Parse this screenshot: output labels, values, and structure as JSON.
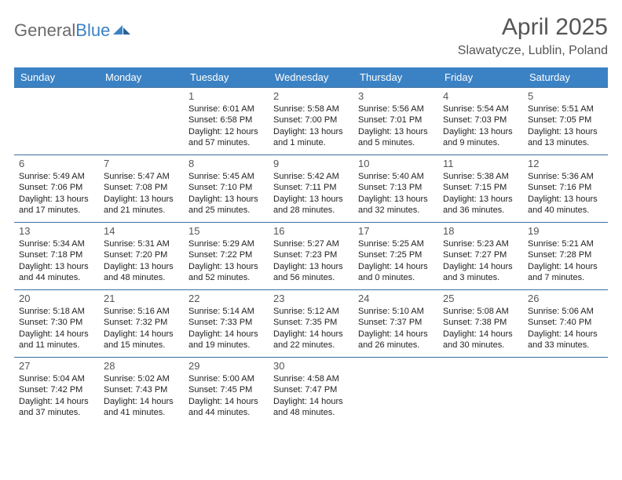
{
  "logo": {
    "word1": "General",
    "word2": "Blue"
  },
  "title": "April 2025",
  "location": "Slawatycze, Lublin, Poland",
  "headers": [
    "Sunday",
    "Monday",
    "Tuesday",
    "Wednesday",
    "Thursday",
    "Friday",
    "Saturday"
  ],
  "colors": {
    "header_bg": "#3b82c4",
    "header_fg": "#ffffff",
    "rule": "#3b6ea0",
    "title_color": "#555555",
    "logo_gray": "#6b6b6b",
    "logo_blue": "#3b82c4",
    "body_text": "#222222",
    "bg": "#ffffff"
  },
  "fonts": {
    "title_size_pt": 22,
    "location_size_pt": 12,
    "header_size_pt": 10,
    "daynum_size_pt": 10,
    "body_size_pt": 8
  },
  "weeks": [
    [
      null,
      null,
      {
        "n": "1",
        "sr": "Sunrise: 6:01 AM",
        "ss": "Sunset: 6:58 PM",
        "dl1": "Daylight: 12 hours",
        "dl2": "and 57 minutes."
      },
      {
        "n": "2",
        "sr": "Sunrise: 5:58 AM",
        "ss": "Sunset: 7:00 PM",
        "dl1": "Daylight: 13 hours",
        "dl2": "and 1 minute."
      },
      {
        "n": "3",
        "sr": "Sunrise: 5:56 AM",
        "ss": "Sunset: 7:01 PM",
        "dl1": "Daylight: 13 hours",
        "dl2": "and 5 minutes."
      },
      {
        "n": "4",
        "sr": "Sunrise: 5:54 AM",
        "ss": "Sunset: 7:03 PM",
        "dl1": "Daylight: 13 hours",
        "dl2": "and 9 minutes."
      },
      {
        "n": "5",
        "sr": "Sunrise: 5:51 AM",
        "ss": "Sunset: 7:05 PM",
        "dl1": "Daylight: 13 hours",
        "dl2": "and 13 minutes."
      }
    ],
    [
      {
        "n": "6",
        "sr": "Sunrise: 5:49 AM",
        "ss": "Sunset: 7:06 PM",
        "dl1": "Daylight: 13 hours",
        "dl2": "and 17 minutes."
      },
      {
        "n": "7",
        "sr": "Sunrise: 5:47 AM",
        "ss": "Sunset: 7:08 PM",
        "dl1": "Daylight: 13 hours",
        "dl2": "and 21 minutes."
      },
      {
        "n": "8",
        "sr": "Sunrise: 5:45 AM",
        "ss": "Sunset: 7:10 PM",
        "dl1": "Daylight: 13 hours",
        "dl2": "and 25 minutes."
      },
      {
        "n": "9",
        "sr": "Sunrise: 5:42 AM",
        "ss": "Sunset: 7:11 PM",
        "dl1": "Daylight: 13 hours",
        "dl2": "and 28 minutes."
      },
      {
        "n": "10",
        "sr": "Sunrise: 5:40 AM",
        "ss": "Sunset: 7:13 PM",
        "dl1": "Daylight: 13 hours",
        "dl2": "and 32 minutes."
      },
      {
        "n": "11",
        "sr": "Sunrise: 5:38 AM",
        "ss": "Sunset: 7:15 PM",
        "dl1": "Daylight: 13 hours",
        "dl2": "and 36 minutes."
      },
      {
        "n": "12",
        "sr": "Sunrise: 5:36 AM",
        "ss": "Sunset: 7:16 PM",
        "dl1": "Daylight: 13 hours",
        "dl2": "and 40 minutes."
      }
    ],
    [
      {
        "n": "13",
        "sr": "Sunrise: 5:34 AM",
        "ss": "Sunset: 7:18 PM",
        "dl1": "Daylight: 13 hours",
        "dl2": "and 44 minutes."
      },
      {
        "n": "14",
        "sr": "Sunrise: 5:31 AM",
        "ss": "Sunset: 7:20 PM",
        "dl1": "Daylight: 13 hours",
        "dl2": "and 48 minutes."
      },
      {
        "n": "15",
        "sr": "Sunrise: 5:29 AM",
        "ss": "Sunset: 7:22 PM",
        "dl1": "Daylight: 13 hours",
        "dl2": "and 52 minutes."
      },
      {
        "n": "16",
        "sr": "Sunrise: 5:27 AM",
        "ss": "Sunset: 7:23 PM",
        "dl1": "Daylight: 13 hours",
        "dl2": "and 56 minutes."
      },
      {
        "n": "17",
        "sr": "Sunrise: 5:25 AM",
        "ss": "Sunset: 7:25 PM",
        "dl1": "Daylight: 14 hours",
        "dl2": "and 0 minutes."
      },
      {
        "n": "18",
        "sr": "Sunrise: 5:23 AM",
        "ss": "Sunset: 7:27 PM",
        "dl1": "Daylight: 14 hours",
        "dl2": "and 3 minutes."
      },
      {
        "n": "19",
        "sr": "Sunrise: 5:21 AM",
        "ss": "Sunset: 7:28 PM",
        "dl1": "Daylight: 14 hours",
        "dl2": "and 7 minutes."
      }
    ],
    [
      {
        "n": "20",
        "sr": "Sunrise: 5:18 AM",
        "ss": "Sunset: 7:30 PM",
        "dl1": "Daylight: 14 hours",
        "dl2": "and 11 minutes."
      },
      {
        "n": "21",
        "sr": "Sunrise: 5:16 AM",
        "ss": "Sunset: 7:32 PM",
        "dl1": "Daylight: 14 hours",
        "dl2": "and 15 minutes."
      },
      {
        "n": "22",
        "sr": "Sunrise: 5:14 AM",
        "ss": "Sunset: 7:33 PM",
        "dl1": "Daylight: 14 hours",
        "dl2": "and 19 minutes."
      },
      {
        "n": "23",
        "sr": "Sunrise: 5:12 AM",
        "ss": "Sunset: 7:35 PM",
        "dl1": "Daylight: 14 hours",
        "dl2": "and 22 minutes."
      },
      {
        "n": "24",
        "sr": "Sunrise: 5:10 AM",
        "ss": "Sunset: 7:37 PM",
        "dl1": "Daylight: 14 hours",
        "dl2": "and 26 minutes."
      },
      {
        "n": "25",
        "sr": "Sunrise: 5:08 AM",
        "ss": "Sunset: 7:38 PM",
        "dl1": "Daylight: 14 hours",
        "dl2": "and 30 minutes."
      },
      {
        "n": "26",
        "sr": "Sunrise: 5:06 AM",
        "ss": "Sunset: 7:40 PM",
        "dl1": "Daylight: 14 hours",
        "dl2": "and 33 minutes."
      }
    ],
    [
      {
        "n": "27",
        "sr": "Sunrise: 5:04 AM",
        "ss": "Sunset: 7:42 PM",
        "dl1": "Daylight: 14 hours",
        "dl2": "and 37 minutes."
      },
      {
        "n": "28",
        "sr": "Sunrise: 5:02 AM",
        "ss": "Sunset: 7:43 PM",
        "dl1": "Daylight: 14 hours",
        "dl2": "and 41 minutes."
      },
      {
        "n": "29",
        "sr": "Sunrise: 5:00 AM",
        "ss": "Sunset: 7:45 PM",
        "dl1": "Daylight: 14 hours",
        "dl2": "and 44 minutes."
      },
      {
        "n": "30",
        "sr": "Sunrise: 4:58 AM",
        "ss": "Sunset: 7:47 PM",
        "dl1": "Daylight: 14 hours",
        "dl2": "and 48 minutes."
      },
      null,
      null,
      null
    ]
  ]
}
